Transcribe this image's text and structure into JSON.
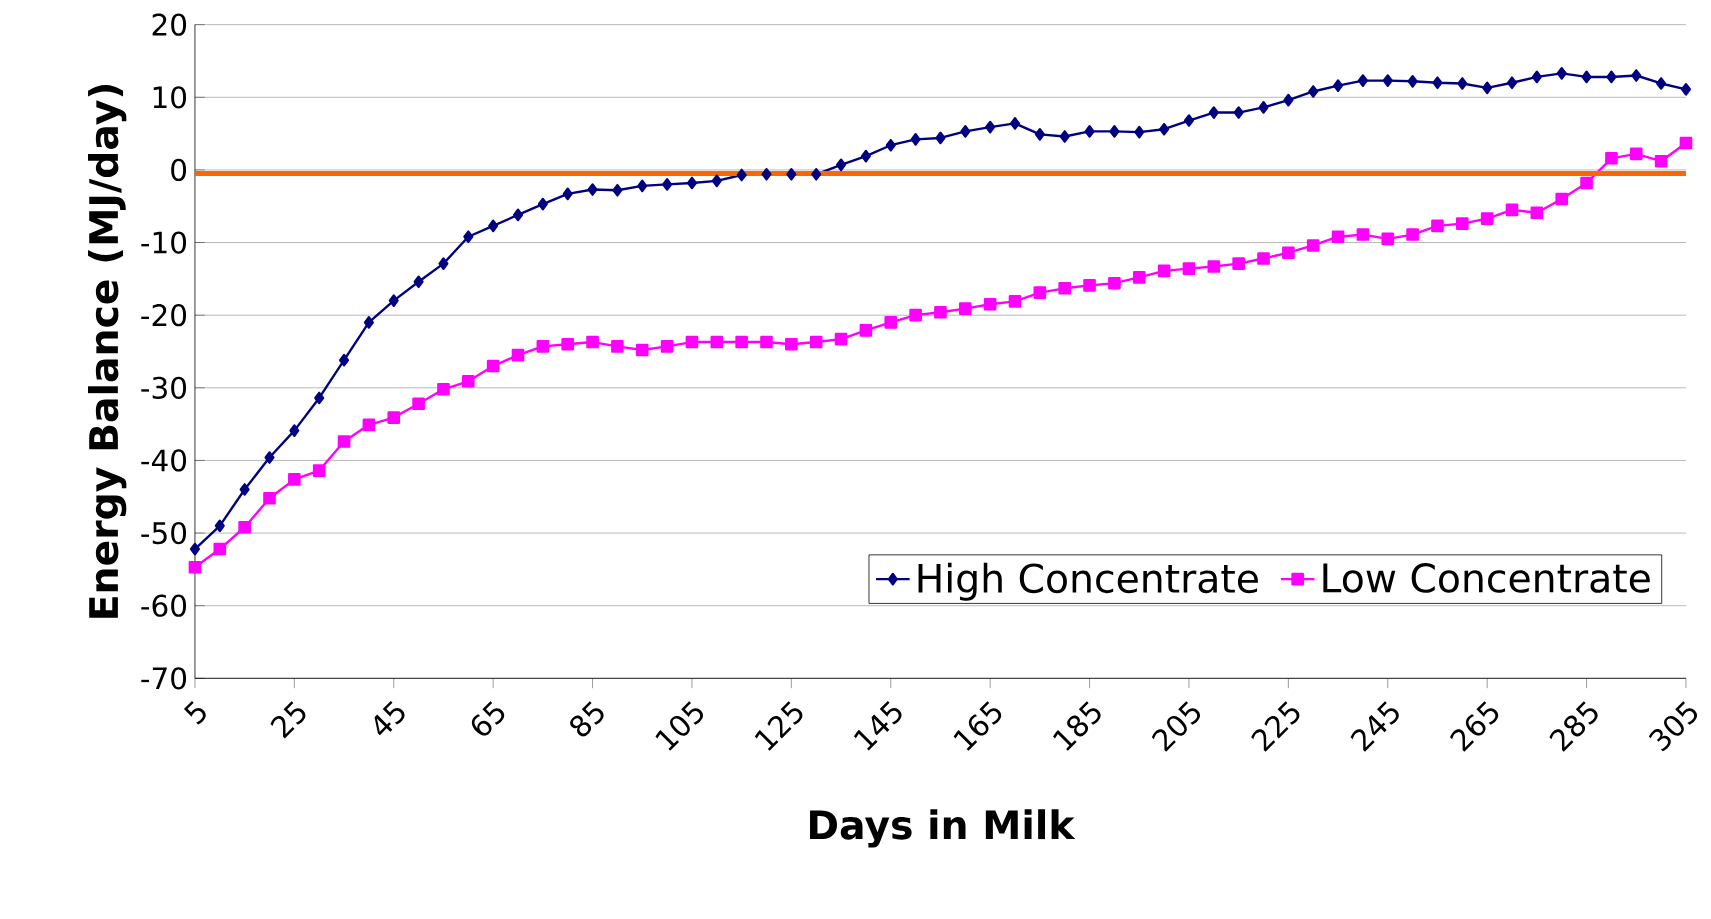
{
  "chart_data": {
    "type": "line",
    "xlabel": "Days in Milk",
    "ylabel": "Energy Balance (MJ/day)",
    "x": [
      5,
      10,
      15,
      20,
      25,
      30,
      35,
      40,
      45,
      50,
      55,
      60,
      65,
      70,
      75,
      80,
      85,
      90,
      95,
      100,
      105,
      110,
      115,
      120,
      125,
      130,
      135,
      140,
      145,
      150,
      155,
      160,
      165,
      170,
      175,
      180,
      185,
      190,
      195,
      200,
      205,
      210,
      215,
      220,
      225,
      230,
      235,
      240,
      245,
      250,
      255,
      260,
      265,
      270,
      275,
      280,
      285,
      290,
      295,
      300,
      305
    ],
    "series": [
      {
        "name": "High Concentrate",
        "color": "#000080",
        "marker": "diamond",
        "values": [
          -52.2,
          -49,
          -44,
          -39.6,
          -35.9,
          -31.4,
          -26.2,
          -21,
          -18,
          -15.4,
          -12.9,
          -9.2,
          -7.7,
          -6.2,
          -4.7,
          -3.3,
          -2.7,
          -2.8,
          -2.2,
          -2,
          -1.8,
          -1.5,
          -0.7,
          -0.6,
          -0.6,
          -0.6,
          0.7,
          1.9,
          3.4,
          4.2,
          4.4,
          5.3,
          5.9,
          6.4,
          4.9,
          4.6,
          5.3,
          5.3,
          5.2,
          5.6,
          6.8,
          7.9,
          7.9,
          8.6,
          9.6,
          10.8,
          11.6,
          12.3,
          12.3,
          12.2,
          12,
          11.9,
          11.3,
          12,
          12.8,
          13.3,
          12.8,
          12.8,
          13,
          11.9,
          11.1
        ]
      },
      {
        "name": "Low Concentrate",
        "color": "#ff00ff",
        "marker": "square",
        "values": [
          -54.7,
          -52.2,
          -49.2,
          -45.2,
          -42.6,
          -41.4,
          -37.4,
          -35.1,
          -34.1,
          -32.2,
          -30.2,
          -29.1,
          -27,
          -25.5,
          -24.3,
          -24,
          -23.7,
          -24.3,
          -24.8,
          -24.3,
          -23.7,
          -23.7,
          -23.7,
          -23.7,
          -24,
          -23.7,
          -23.3,
          -22.1,
          -21,
          -20,
          -19.6,
          -19.1,
          -18.5,
          -18.1,
          -16.9,
          -16.3,
          -15.9,
          -15.6,
          -14.8,
          -13.9,
          -13.6,
          -13.3,
          -12.9,
          -12.2,
          -11.4,
          -10.4,
          -9.2,
          -8.9,
          -9.5,
          -8.9,
          -7.7,
          -7.4,
          -6.7,
          -5.5,
          -5.9,
          -4,
          -1.8,
          1.6,
          2.2,
          1.2,
          3.7
        ]
      }
    ],
    "xlim": [
      5,
      305
    ],
    "xticks": [
      5,
      25,
      45,
      65,
      85,
      105,
      125,
      145,
      165,
      185,
      205,
      225,
      245,
      265,
      285,
      305
    ],
    "ylim": [
      -70,
      20
    ],
    "yticks": [
      -70,
      -60,
      -50,
      -40,
      -30,
      -20,
      -10,
      0,
      10,
      20
    ],
    "ref_lines": [
      {
        "axis": "y",
        "value": -0.5,
        "color": "#ff6600"
      }
    ],
    "grid": "y",
    "legend": "bottom right",
    "line_style": "solid"
  }
}
